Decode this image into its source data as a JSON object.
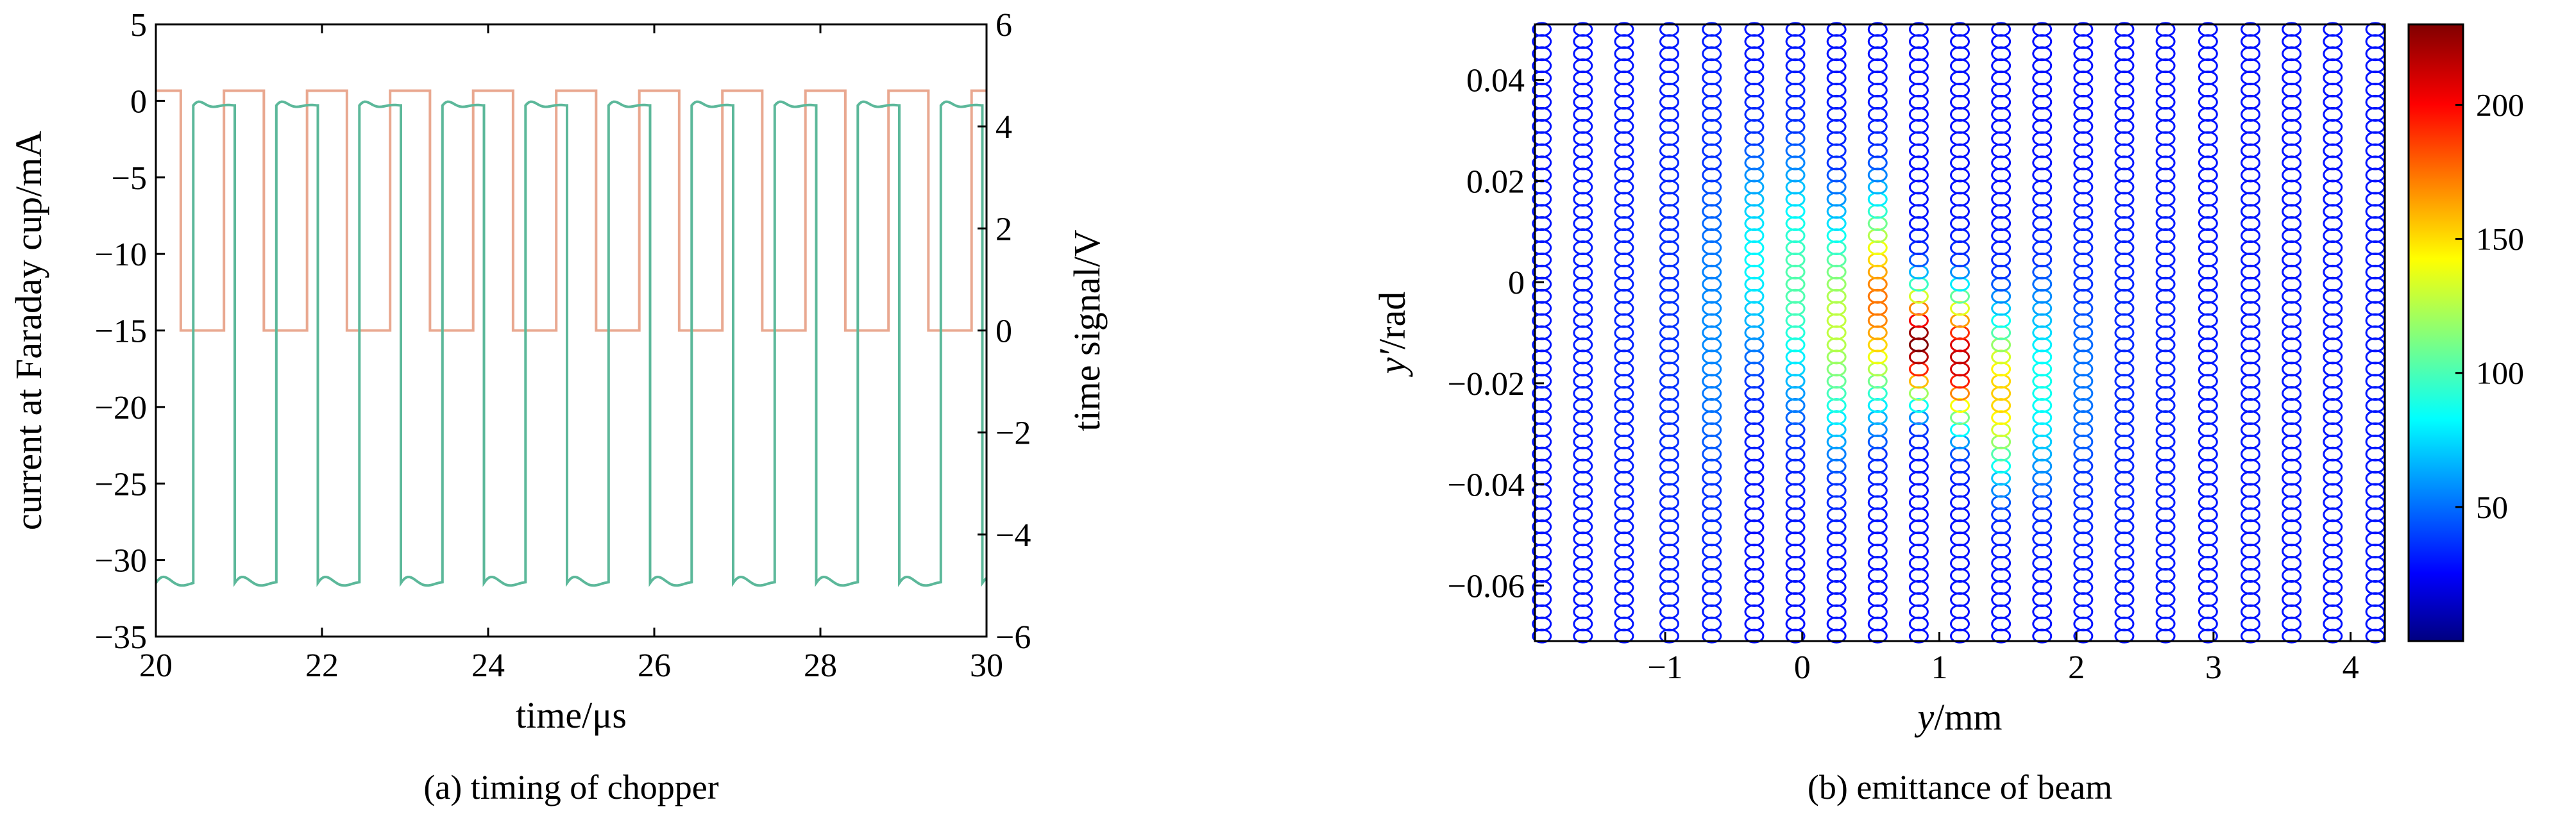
{
  "chart_data": [
    {
      "type": "line",
      "caption": "(a) timing of chopper",
      "xlabel": "time/μs",
      "ylabel": "current at Faraday cup/mA",
      "y2label": "time signal/V",
      "xlim": [
        20,
        30
      ],
      "ylim": [
        -35,
        5
      ],
      "y2lim": [
        -6,
        6
      ],
      "xticks": [
        "20",
        "22",
        "24",
        "26",
        "28",
        "30"
      ],
      "yticks": [
        "5",
        "0",
        "−5",
        "−10",
        "−15",
        "−20",
        "−25",
        "−30",
        "−35"
      ],
      "y2ticks": [
        "6",
        "4",
        "2",
        "0",
        "−2",
        "−4",
        "−6"
      ],
      "grid": false,
      "series": [
        {
          "axis": "left",
          "color": "#5cb89a",
          "period": 1.0,
          "low": -31.5,
          "high": -0.3,
          "rise_times": [
            20.45,
            21.45,
            22.45,
            23.45,
            24.45,
            25.45,
            26.45,
            27.45,
            28.45,
            29.45
          ],
          "fall_times": [
            20.95,
            21.95,
            22.95,
            23.95,
            24.95,
            25.95,
            26.95,
            27.95,
            28.95,
            29.95
          ]
        },
        {
          "axis": "right",
          "color": "#e9a890",
          "period": 1.0,
          "low": 0,
          "high": 4.7,
          "rise_times": [
            20.82,
            21.82,
            22.82,
            23.82,
            24.82,
            25.82,
            26.82,
            27.82,
            28.82,
            29.82
          ],
          "fall_times": [
            20.3,
            21.3,
            22.3,
            23.3,
            24.3,
            25.3,
            26.3,
            27.3,
            28.3,
            29.3
          ]
        }
      ]
    },
    {
      "type": "scatter",
      "caption": "(b) emittance of beam",
      "xlabel_italic": "y",
      "xlabel_rest": "/mm",
      "ylabel_italic": "y′",
      "ylabel_rest": "/rad",
      "xlim": [
        -1.95,
        4.25
      ],
      "ylim": [
        -0.071,
        0.051
      ],
      "xticks": [
        "−1",
        "0",
        "1",
        "2",
        "3",
        "4"
      ],
      "yticks": [
        "0.04",
        "0.02",
        "0",
        "−0.02",
        "−0.04",
        "−0.06"
      ],
      "colorbar": {
        "range": [
          0,
          230
        ],
        "ticks": [
          "200",
          "150",
          "100",
          "50"
        ],
        "colormap": "jet"
      },
      "columns_x": [
        -1.9,
        -1.6,
        -1.3,
        -0.97,
        -0.66,
        -0.35,
        -0.05,
        0.25,
        0.55,
        0.85,
        1.15,
        1.45,
        1.75,
        2.05,
        2.35,
        2.65,
        2.96,
        3.27,
        3.57,
        3.87,
        4.18
      ],
      "peak_intensity": [
        20,
        25,
        30,
        40,
        60,
        85,
        105,
        130,
        175,
        230,
        215,
        155,
        90,
        55,
        35,
        28,
        22,
        20,
        20,
        20,
        20
      ],
      "peak_y": [
        -0.012,
        -0.012,
        -0.012,
        -0.012,
        -0.008,
        0.005,
        0.0,
        -0.008,
        -0.004,
        -0.012,
        -0.015,
        -0.022,
        -0.02,
        -0.02,
        -0.02,
        -0.02,
        -0.02,
        -0.02,
        -0.02,
        -0.02,
        -0.02
      ],
      "spread_y": [
        0.05,
        0.05,
        0.05,
        0.05,
        0.045,
        0.025,
        0.028,
        0.026,
        0.022,
        0.012,
        0.014,
        0.018,
        0.024,
        0.03,
        0.04,
        0.05,
        0.05,
        0.05,
        0.05,
        0.05,
        0.05
      ],
      "marker_color": "#1a3fd6",
      "grid": false
    }
  ]
}
